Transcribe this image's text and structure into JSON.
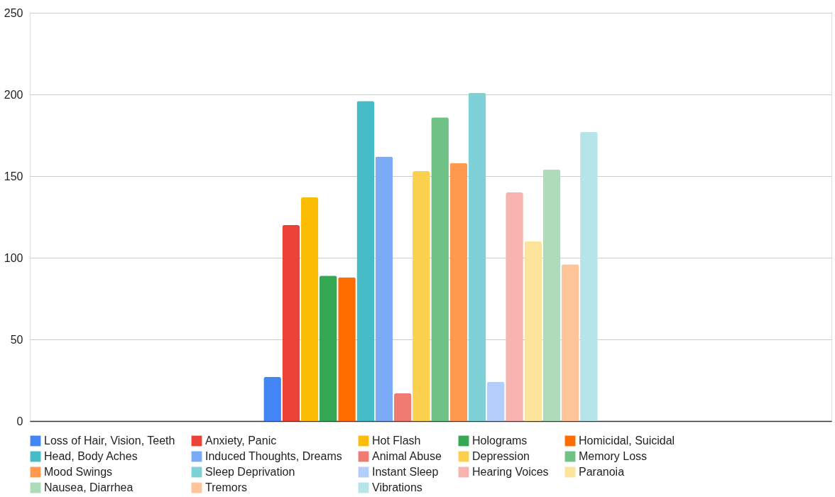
{
  "chart_data": {
    "type": "bar",
    "categories": [
      null
    ],
    "ylim": [
      0,
      250
    ],
    "yticks": [
      0,
      50,
      100,
      150,
      200,
      250
    ],
    "grid": "y",
    "legend": "bottom",
    "series": [
      {
        "name": "Loss of Hair, Vision, Teeth",
        "color": "#4285f4",
        "values": [
          27
        ]
      },
      {
        "name": "Anxiety, Panic",
        "color": "#ea4335",
        "values": [
          120
        ]
      },
      {
        "name": "Hot Flash",
        "color": "#fbbc04",
        "values": [
          137
        ]
      },
      {
        "name": "Holograms",
        "color": "#34a853",
        "values": [
          89
        ]
      },
      {
        "name": "Homicidal, Suicidal",
        "color": "#ff6d01",
        "values": [
          88
        ]
      },
      {
        "name": "Head, Body Aches",
        "color": "#46bdc6",
        "values": [
          196
        ]
      },
      {
        "name": "Induced Thoughts, Dreams",
        "color": "#7baaf7",
        "values": [
          162
        ]
      },
      {
        "name": "Animal Abuse",
        "color": "#f07b72",
        "values": [
          17
        ]
      },
      {
        "name": "Depression",
        "color": "#fcd04f",
        "values": [
          153
        ]
      },
      {
        "name": "Memory Loss",
        "color": "#71c287",
        "values": [
          186
        ]
      },
      {
        "name": "Mood Swings",
        "color": "#ff994d",
        "values": [
          158
        ]
      },
      {
        "name": "Sleep Deprivation",
        "color": "#7ed1d7",
        "values": [
          201
        ]
      },
      {
        "name": "Instant Sleep",
        "color": "#b3cefb",
        "values": [
          24
        ]
      },
      {
        "name": "Hearing Voices",
        "color": "#f7b4ae",
        "values": [
          140
        ]
      },
      {
        "name": "Paranoia",
        "color": "#fde49b",
        "values": [
          110
        ]
      },
      {
        "name": "Nausea, Diarrhea",
        "color": "#aedcba",
        "values": [
          154
        ]
      },
      {
        "name": "Tremors",
        "color": "#ffc599",
        "values": [
          96
        ]
      },
      {
        "name": "Vibrations",
        "color": "#b5e5e8",
        "values": [
          177
        ]
      }
    ]
  }
}
